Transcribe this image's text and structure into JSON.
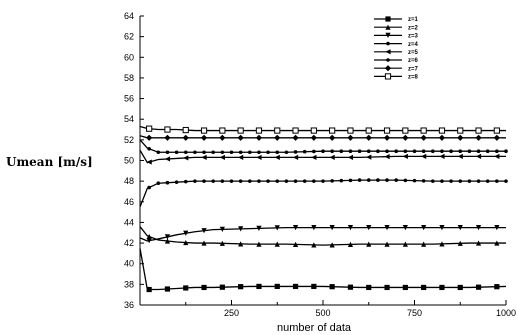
{
  "chart_data": {
    "type": "line",
    "xlabel": "number of data",
    "ylabel": "Umean [m/s]",
    "xlim": [
      0,
      1000
    ],
    "ylim": [
      36,
      64
    ],
    "xticks": [
      250,
      500,
      750,
      1000
    ],
    "yticks": [
      36,
      38,
      40,
      42,
      44,
      46,
      48,
      50,
      52,
      54,
      56,
      58,
      60,
      62,
      64
    ],
    "legend_position": "top-right",
    "grid": false,
    "series": [
      {
        "name": "z=1",
        "marker": "square-filled",
        "x": [
          0,
          20,
          50,
          100,
          150,
          200,
          300,
          400,
          500,
          600,
          700,
          800,
          900,
          1000
        ],
        "y": [
          41.5,
          37.5,
          37.5,
          37.6,
          37.7,
          37.7,
          37.8,
          37.8,
          37.8,
          37.7,
          37.7,
          37.7,
          37.7,
          37.8
        ]
      },
      {
        "name": "z=2",
        "marker": "triangle-up",
        "x": [
          0,
          20,
          50,
          100,
          150,
          200,
          300,
          400,
          500,
          600,
          700,
          800,
          900,
          1000
        ],
        "y": [
          43.6,
          42.7,
          42.3,
          42.1,
          42.0,
          42.0,
          41.9,
          41.9,
          41.8,
          41.9,
          41.9,
          41.9,
          42.0,
          42.0
        ]
      },
      {
        "name": "z=3",
        "marker": "triangle-down",
        "x": [
          0,
          20,
          50,
          100,
          150,
          200,
          300,
          400,
          500,
          600,
          700,
          800,
          900,
          1000
        ],
        "y": [
          42.5,
          42.2,
          42.4,
          42.8,
          43.1,
          43.3,
          43.4,
          43.5,
          43.5,
          43.5,
          43.5,
          43.5,
          43.5,
          43.5
        ]
      },
      {
        "name": "z=4",
        "marker": "dot",
        "x": [
          0,
          20,
          50,
          100,
          150,
          200,
          300,
          400,
          500,
          600,
          700,
          800,
          900,
          1000
        ],
        "y": [
          45.5,
          47.3,
          47.8,
          47.9,
          48.0,
          48.0,
          48.0,
          48.0,
          48.0,
          48.1,
          48.1,
          48.0,
          48.0,
          48.0
        ]
      },
      {
        "name": "z=5",
        "marker": "triangle-left",
        "x": [
          0,
          20,
          50,
          100,
          150,
          200,
          300,
          400,
          500,
          600,
          700,
          800,
          900,
          1000
        ],
        "y": [
          51.0,
          49.8,
          50.1,
          50.2,
          50.3,
          50.3,
          50.3,
          50.3,
          50.3,
          50.3,
          50.4,
          50.4,
          50.4,
          50.4
        ]
      },
      {
        "name": "z=6",
        "marker": "dot",
        "x": [
          0,
          20,
          50,
          100,
          150,
          200,
          300,
          400,
          500,
          600,
          700,
          800,
          900,
          1000
        ],
        "y": [
          52.0,
          51.2,
          50.8,
          50.8,
          50.8,
          50.8,
          50.8,
          50.8,
          50.9,
          50.9,
          50.9,
          50.9,
          50.9,
          50.9
        ]
      },
      {
        "name": "z=7",
        "marker": "diamond-filled",
        "x": [
          0,
          20,
          50,
          100,
          150,
          200,
          300,
          400,
          500,
          600,
          700,
          800,
          900,
          1000
        ],
        "y": [
          52.4,
          52.2,
          52.2,
          52.2,
          52.2,
          52.2,
          52.2,
          52.2,
          52.2,
          52.2,
          52.2,
          52.2,
          52.2,
          52.2
        ]
      },
      {
        "name": "z=8",
        "marker": "square-open",
        "x": [
          0,
          20,
          50,
          100,
          150,
          200,
          300,
          400,
          500,
          600,
          700,
          800,
          900,
          1000
        ],
        "y": [
          53.3,
          53.1,
          53.0,
          53.0,
          52.9,
          52.9,
          52.9,
          52.9,
          52.9,
          52.9,
          52.9,
          52.9,
          52.9,
          52.9
        ]
      }
    ]
  }
}
